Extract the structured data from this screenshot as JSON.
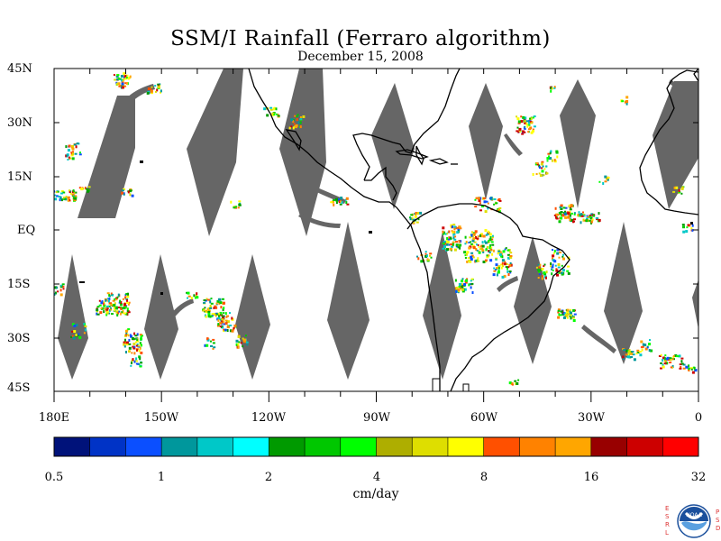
{
  "title": "SSM/I Rainfall (Ferraro algorithm)",
  "subtitle": "December 15, 2008",
  "lat_labels": [
    "45N",
    "30N",
    "15N",
    "EQ",
    "15S",
    "30S",
    "45S"
  ],
  "lon_labels": [
    "180E",
    "150W",
    "120W",
    "90W",
    "60W",
    "30W",
    "0"
  ],
  "colorbar": {
    "tick_labels": [
      "0.5",
      "1",
      "2",
      "4",
      "8",
      "16",
      "32"
    ],
    "units": "cm/day",
    "colors": [
      "#00127a",
      "#0033c6",
      "#0b4fff",
      "#00979c",
      "#00c8c8",
      "#00ffff",
      "#009a00",
      "#00c700",
      "#00ff00",
      "#aeae00",
      "#dede00",
      "#ffff00",
      "#ff5000",
      "#ff8200",
      "#ffa600",
      "#980000",
      "#cd0000",
      "#ff0000"
    ]
  },
  "colors": {
    "no_data_gap": "#666666",
    "coastline": "#000000"
  },
  "logo": {
    "name": "noaa-logo",
    "text": "NOAA",
    "left_letters": [
      "E",
      "S",
      "R",
      "L"
    ],
    "right_letters": [
      "P",
      "S",
      "D"
    ]
  }
}
